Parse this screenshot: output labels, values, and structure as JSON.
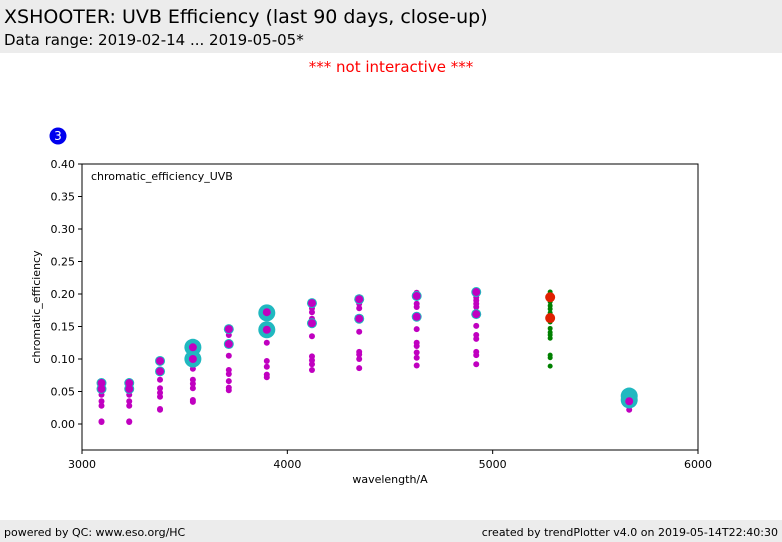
{
  "header": {
    "title": "XSHOOTER: UVB Efficiency (last 90 days, close-up)",
    "subtitle": "Data range: 2019-02-14 ... 2019-05-05*"
  },
  "notice": "*** not interactive ***",
  "footer": {
    "left": "powered by QC: www.eso.org/HC",
    "right": "created by trendPlotter v4.0 on 2019-05-14T22:40:30"
  },
  "badge": "3",
  "colors": {
    "magenta": "#c000c0",
    "cyan": "#20b8c0",
    "green": "#008000",
    "red": "#e02000",
    "badge": "#0000ee"
  },
  "chart_data": {
    "type": "scatter",
    "panel_label": "chromatic_efficiency_UVB",
    "xlabel": "wavelength/A",
    "ylabel": "chromatic_efficiency",
    "xlim": [
      3000,
      6000
    ],
    "ylim": [
      -0.04,
      0.4
    ],
    "x_ticks": [
      3000,
      4000,
      5000,
      6000
    ],
    "y_ticks": [
      0.0,
      0.05,
      0.1,
      0.15,
      0.2,
      0.25,
      0.3,
      0.35,
      0.4
    ],
    "x_tick_labels": [
      "3000",
      "4000",
      "5000",
      "6000"
    ],
    "y_tick_labels": [
      "0.00",
      "0.05",
      "0.10",
      "0.15",
      "0.20",
      "0.25",
      "0.30",
      "0.35",
      "0.40"
    ],
    "grid": false,
    "series": [
      {
        "color": "#c000c0",
        "size": 3,
        "points": [
          [
            3095,
            0.063
          ],
          [
            3095,
            0.056
          ],
          [
            3095,
            0.045
          ],
          [
            3095,
            0.035
          ],
          [
            3095,
            0.028
          ],
          [
            3095,
            0.004
          ],
          [
            3095,
            0.003
          ],
          [
            3230,
            0.063
          ],
          [
            3230,
            0.056
          ],
          [
            3230,
            0.045
          ],
          [
            3230,
            0.035
          ],
          [
            3230,
            0.028
          ],
          [
            3230,
            0.004
          ],
          [
            3230,
            0.003
          ],
          [
            3380,
            0.097
          ],
          [
            3380,
            0.083
          ],
          [
            3380,
            0.068
          ],
          [
            3380,
            0.055
          ],
          [
            3380,
            0.048
          ],
          [
            3380,
            0.042
          ],
          [
            3380,
            0.023
          ],
          [
            3380,
            0.022
          ],
          [
            3540,
            0.118
          ],
          [
            3540,
            0.1
          ],
          [
            3540,
            0.085
          ],
          [
            3540,
            0.068
          ],
          [
            3540,
            0.062
          ],
          [
            3540,
            0.055
          ],
          [
            3540,
            0.037
          ],
          [
            3540,
            0.034
          ],
          [
            3715,
            0.147
          ],
          [
            3715,
            0.137
          ],
          [
            3715,
            0.123
          ],
          [
            3715,
            0.105
          ],
          [
            3715,
            0.083
          ],
          [
            3715,
            0.077
          ],
          [
            3715,
            0.066
          ],
          [
            3715,
            0.056
          ],
          [
            3715,
            0.052
          ],
          [
            3900,
            0.172
          ],
          [
            3900,
            0.145
          ],
          [
            3900,
            0.125
          ],
          [
            3900,
            0.097
          ],
          [
            3900,
            0.088
          ],
          [
            3900,
            0.076
          ],
          [
            3900,
            0.072
          ],
          [
            4120,
            0.188
          ],
          [
            4120,
            0.178
          ],
          [
            4120,
            0.172
          ],
          [
            4120,
            0.162
          ],
          [
            4120,
            0.155
          ],
          [
            4120,
            0.135
          ],
          [
            4120,
            0.104
          ],
          [
            4120,
            0.098
          ],
          [
            4120,
            0.092
          ],
          [
            4120,
            0.083
          ],
          [
            4350,
            0.195
          ],
          [
            4350,
            0.185
          ],
          [
            4350,
            0.178
          ],
          [
            4350,
            0.163
          ],
          [
            4350,
            0.142
          ],
          [
            4350,
            0.111
          ],
          [
            4350,
            0.107
          ],
          [
            4350,
            0.1
          ],
          [
            4350,
            0.086
          ],
          [
            4630,
            0.202
          ],
          [
            4630,
            0.194
          ],
          [
            4630,
            0.185
          ],
          [
            4630,
            0.18
          ],
          [
            4630,
            0.165
          ],
          [
            4630,
            0.146
          ],
          [
            4630,
            0.125
          ],
          [
            4630,
            0.12
          ],
          [
            4630,
            0.11
          ],
          [
            4630,
            0.102
          ],
          [
            4630,
            0.09
          ],
          [
            4920,
            0.205
          ],
          [
            4920,
            0.195
          ],
          [
            4920,
            0.19
          ],
          [
            4920,
            0.185
          ],
          [
            4920,
            0.18
          ],
          [
            4920,
            0.17
          ],
          [
            4920,
            0.151
          ],
          [
            4920,
            0.137
          ],
          [
            4920,
            0.131
          ],
          [
            4920,
            0.111
          ],
          [
            4920,
            0.106
          ],
          [
            4920,
            0.092
          ],
          [
            5665,
            0.035
          ],
          [
            5665,
            0.022
          ]
        ]
      },
      {
        "color": "#008000",
        "size": 2.5,
        "points": [
          [
            5280,
            0.203
          ],
          [
            5280,
            0.199
          ],
          [
            5280,
            0.193
          ],
          [
            5280,
            0.188
          ],
          [
            5280,
            0.182
          ],
          [
            5280,
            0.177
          ],
          [
            5280,
            0.171
          ],
          [
            5280,
            0.166
          ],
          [
            5280,
            0.157
          ],
          [
            5280,
            0.147
          ],
          [
            5280,
            0.141
          ],
          [
            5280,
            0.137
          ],
          [
            5280,
            0.132
          ],
          [
            5280,
            0.106
          ],
          [
            5280,
            0.102
          ],
          [
            5280,
            0.089
          ]
        ]
      },
      {
        "color": "#20b8c0",
        "size": 5,
        "points": [
          [
            3095,
            0.063
          ],
          [
            3095,
            0.054
          ],
          [
            3230,
            0.063
          ],
          [
            3230,
            0.054
          ],
          [
            3380,
            0.097
          ],
          [
            3380,
            0.081
          ],
          [
            3715,
            0.146
          ],
          [
            3715,
            0.123
          ],
          [
            4120,
            0.186
          ],
          [
            4120,
            0.155
          ],
          [
            4350,
            0.192
          ],
          [
            4350,
            0.162
          ],
          [
            4630,
            0.197
          ],
          [
            4630,
            0.165
          ],
          [
            4920,
            0.203
          ],
          [
            4920,
            0.169
          ]
        ]
      },
      {
        "color": "#20b8c0",
        "size": 8.5,
        "points": [
          [
            3540,
            0.118
          ],
          [
            3540,
            0.1
          ],
          [
            3900,
            0.171
          ],
          [
            3900,
            0.145
          ],
          [
            5665,
            0.043
          ],
          [
            5665,
            0.037
          ]
        ]
      },
      {
        "color": "#c000c0",
        "size": 4,
        "points": [
          [
            3540,
            0.118
          ],
          [
            3540,
            0.1
          ],
          [
            3900,
            0.172
          ],
          [
            3900,
            0.145
          ],
          [
            5665,
            0.035
          ],
          [
            3095,
            0.063
          ],
          [
            3095,
            0.054
          ],
          [
            3230,
            0.063
          ],
          [
            3230,
            0.054
          ],
          [
            3380,
            0.097
          ],
          [
            3380,
            0.081
          ],
          [
            3715,
            0.146
          ],
          [
            3715,
            0.123
          ],
          [
            4120,
            0.186
          ],
          [
            4120,
            0.155
          ],
          [
            4350,
            0.192
          ],
          [
            4350,
            0.162
          ],
          [
            4630,
            0.197
          ],
          [
            4630,
            0.165
          ],
          [
            4920,
            0.203
          ],
          [
            4920,
            0.169
          ]
        ]
      },
      {
        "color": "#e02000",
        "size": 5,
        "points": [
          [
            5280,
            0.195
          ],
          [
            5280,
            0.163
          ]
        ]
      }
    ]
  }
}
